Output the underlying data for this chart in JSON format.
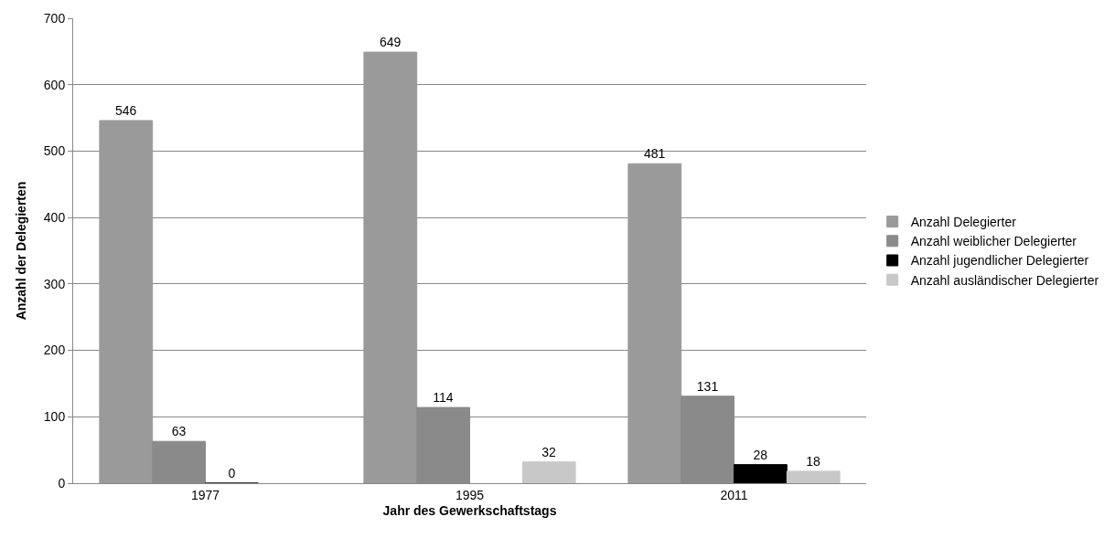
{
  "chart_data": {
    "type": "bar",
    "xlabel": "Jahr des Gewerkschaftstags",
    "ylabel": "Anzahl der Delegierten",
    "categories": [
      "1977",
      "1995",
      "2011"
    ],
    "series": [
      {
        "name": "Anzahl Delegierter",
        "color": "#9a9a9a",
        "values": [
          546,
          649,
          481
        ]
      },
      {
        "name": "Anzahl weiblicher Delegierter",
        "color": "#8a8a8a",
        "values": [
          63,
          114,
          131
        ]
      },
      {
        "name": "Anzahl jugendlicher Delegierter",
        "color": "#000000",
        "values": [
          0,
          null,
          28
        ]
      },
      {
        "name": "Anzahl ausländischer Delegierter",
        "color": "#c8c8c8",
        "values": [
          null,
          32,
          18
        ]
      }
    ],
    "ylim": [
      0,
      700
    ],
    "yticks": [
      0,
      100,
      200,
      300,
      400,
      500,
      600,
      700
    ],
    "grid": "y",
    "legend": "right",
    "data_labels": true
  }
}
